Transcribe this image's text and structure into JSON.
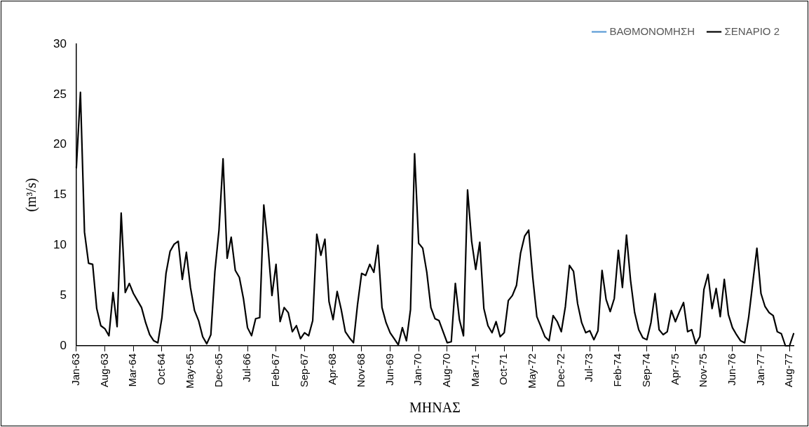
{
  "chart_data": {
    "type": "line",
    "xlabel": "ΜΗΝΑΣ",
    "ylabel": "(m³/s)",
    "categories": [
      "Jan-63",
      null,
      null,
      null,
      null,
      null,
      null,
      "Aug-63",
      null,
      null,
      null,
      null,
      null,
      null,
      "Mar-64",
      null,
      null,
      null,
      null,
      null,
      null,
      "Oct-64",
      null,
      null,
      null,
      null,
      null,
      null,
      "May-65",
      null,
      null,
      null,
      null,
      null,
      null,
      "Dec-65",
      null,
      null,
      null,
      null,
      null,
      null,
      "Jul-66",
      null,
      null,
      null,
      null,
      null,
      null,
      "Feb-67",
      null,
      null,
      null,
      null,
      null,
      null,
      "Sep-67",
      null,
      null,
      null,
      null,
      null,
      null,
      "Apr-68",
      null,
      null,
      null,
      null,
      null,
      null,
      "Nov-68",
      null,
      null,
      null,
      null,
      null,
      null,
      "Jun-69",
      null,
      null,
      null,
      null,
      null,
      null,
      "Jan-70",
      null,
      null,
      null,
      null,
      null,
      null,
      "Aug-70",
      null,
      null,
      null,
      null,
      null,
      null,
      "Mar-71",
      null,
      null,
      null,
      null,
      null,
      null,
      "Oct-71",
      null,
      null,
      null,
      null,
      null,
      null,
      "May-72",
      null,
      null,
      null,
      null,
      null,
      null,
      "Dec-72",
      null,
      null,
      null,
      null,
      null,
      null,
      "Jul-73",
      null,
      null,
      null,
      null,
      null,
      null,
      "Feb-74",
      null,
      null,
      null,
      null,
      null,
      null,
      "Sep-74",
      null,
      null,
      null,
      null,
      null,
      null,
      "Apr-75",
      null,
      null,
      null,
      null,
      null,
      null,
      "Nov-75",
      null,
      null,
      null,
      null,
      null,
      null,
      "Jun-76",
      null,
      null,
      null,
      null,
      null,
      null,
      "Jan-77",
      null,
      null,
      null,
      null,
      null,
      null,
      "Aug-77",
      null
    ],
    "series": [
      {
        "name": "ΒΑΘΜΟΝΟΜΗΣΗ",
        "color": "#5b9bd5",
        "values": [
          null,
          null,
          null,
          null,
          null,
          null,
          null,
          null,
          null,
          null,
          null,
          null,
          null,
          null,
          null,
          null,
          null,
          null,
          null,
          null,
          null,
          null,
          null,
          null,
          null,
          null,
          null,
          null,
          null,
          null,
          null,
          null,
          null,
          null,
          null,
          null,
          null,
          null,
          null,
          null,
          null,
          null,
          null,
          null,
          null,
          null,
          null,
          null,
          null,
          null,
          null,
          null,
          null,
          null,
          null,
          null,
          null,
          null,
          null,
          null,
          null,
          null,
          null,
          null,
          null,
          null,
          null,
          null,
          null,
          null,
          null,
          null,
          null,
          null,
          null,
          null,
          null,
          null,
          null,
          null,
          null,
          null,
          null,
          null,
          null,
          null,
          null,
          null,
          null,
          null,
          null,
          null,
          null,
          null,
          null,
          null,
          null,
          null,
          null,
          null,
          null,
          null,
          null,
          null,
          null,
          null,
          null,
          null,
          null,
          null,
          null,
          null,
          null,
          null,
          null,
          null,
          null,
          null,
          null,
          null,
          null,
          null,
          null,
          null,
          null,
          null,
          null,
          null,
          null,
          null,
          null,
          null,
          null,
          null,
          null,
          null,
          null,
          null,
          null,
          null,
          null,
          null,
          null,
          null,
          null,
          null,
          null,
          null,
          null,
          null,
          null,
          null,
          null,
          null,
          null,
          null,
          null,
          null,
          null,
          null,
          null,
          null,
          null,
          null,
          null,
          null,
          null,
          null,
          null,
          null,
          null,
          null,
          null,
          null,
          null,
          null,
          null
        ]
      },
      {
        "name": "ΣΕΝΑΡΙΟ 2",
        "color": "#000000",
        "values": [
          17.7,
          25.2,
          11.3,
          8.2,
          8.1,
          3.7,
          2.0,
          1.7,
          1.0,
          5.3,
          1.9,
          13.2,
          5.3,
          6.2,
          5.2,
          4.5,
          3.8,
          2.3,
          1.1,
          0.5,
          0.3,
          2.8,
          7.2,
          9.4,
          10.1,
          10.4,
          6.6,
          9.3,
          5.8,
          3.5,
          2.5,
          0.9,
          0.2,
          1.1,
          7.4,
          11.5,
          18.6,
          8.7,
          10.8,
          7.5,
          6.8,
          4.7,
          1.8,
          1.0,
          2.7,
          2.8,
          14.0,
          10.0,
          5.0,
          8.1,
          2.4,
          3.8,
          3.3,
          1.4,
          2.0,
          0.7,
          1.3,
          1.0,
          2.5,
          11.1,
          9.0,
          10.6,
          4.4,
          2.6,
          5.4,
          3.6,
          1.4,
          0.8,
          0.3,
          4.1,
          7.2,
          7.0,
          8.1,
          7.3,
          10.0,
          3.8,
          2.3,
          1.3,
          0.7,
          0.1,
          1.8,
          0.5,
          3.6,
          19.1,
          10.2,
          9.7,
          7.3,
          3.8,
          2.7,
          2.5,
          1.4,
          0.3,
          0.4,
          6.2,
          2.6,
          1.0,
          15.5,
          10.4,
          7.6,
          10.3,
          3.7,
          2.0,
          1.3,
          2.4,
          0.9,
          1.3,
          4.5,
          5.0,
          6.0,
          9.2,
          10.9,
          11.5,
          6.8,
          2.9,
          1.9,
          0.9,
          0.5,
          3.0,
          2.4,
          1.4,
          3.9,
          8.0,
          7.4,
          4.2,
          2.3,
          1.3,
          1.5,
          0.6,
          1.5,
          7.5,
          4.6,
          3.4,
          4.7,
          9.5,
          5.8,
          11.0,
          6.5,
          3.3,
          1.6,
          0.8,
          0.6,
          2.3,
          5.2,
          1.6,
          1.1,
          1.4,
          3.5,
          2.4,
          3.4,
          4.3,
          1.4,
          1.6,
          0.2,
          0.9,
          5.6,
          7.1,
          3.7,
          5.7,
          2.9,
          6.6,
          3.1,
          1.8,
          1.1,
          0.5,
          0.3,
          2.9,
          6.3,
          9.7,
          5.2,
          3.9,
          3.3,
          3.0,
          1.4,
          1.2,
          0.0,
          0.0,
          1.2
        ]
      }
    ],
    "ylim": [
      0,
      30
    ],
    "yticks": [
      0,
      5,
      10,
      15,
      20,
      25,
      30
    ],
    "grid": false,
    "legend": "top right",
    "marker": "none",
    "line_style": "solid"
  }
}
